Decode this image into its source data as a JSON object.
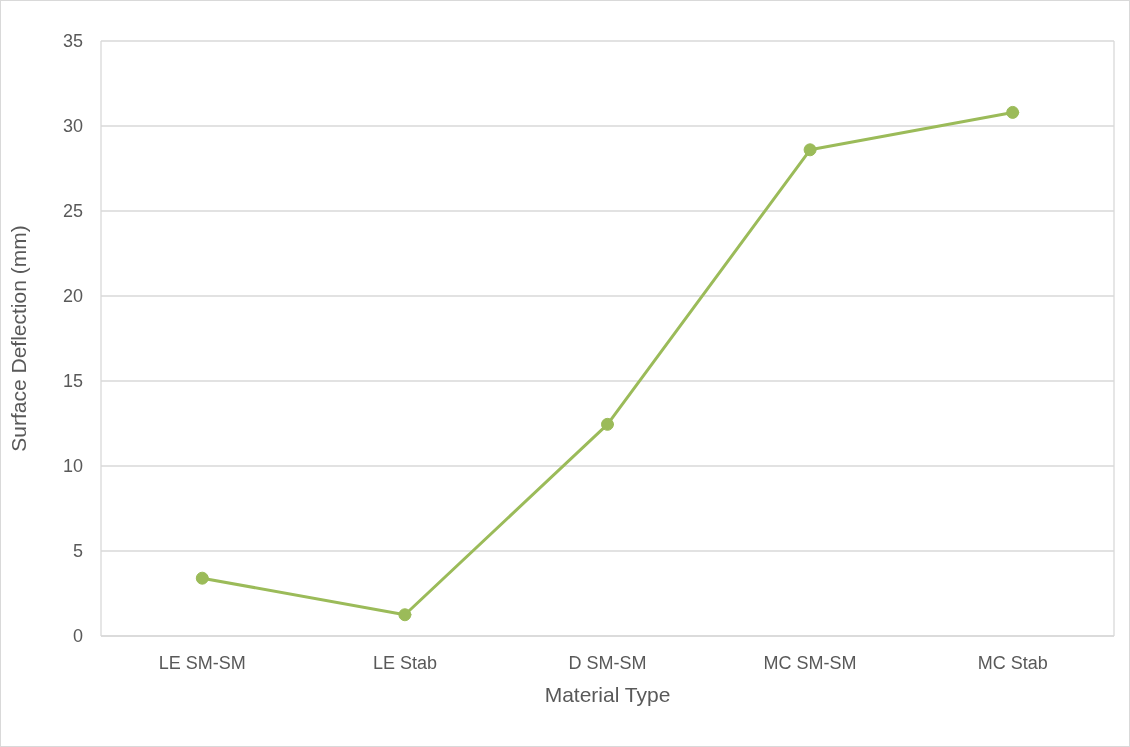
{
  "chart_data": {
    "type": "line",
    "xlabel": "Material Type",
    "ylabel": "Surface Deflection (mm)",
    "categories": [
      "LE SM-SM",
      "LE Stab",
      "D SM-SM",
      "MC SM-SM",
      "MC Stab"
    ],
    "series": [
      {
        "color": "#9bbb59",
        "values": [
          3.4,
          1.25,
          12.45,
          28.6,
          30.8
        ]
      }
    ],
    "ylim": [
      0,
      35
    ],
    "yticks": [
      0,
      5,
      10,
      15,
      20,
      25,
      30,
      35
    ],
    "grid": true,
    "marker": "circle",
    "line_style": "solid",
    "legend": false
  }
}
